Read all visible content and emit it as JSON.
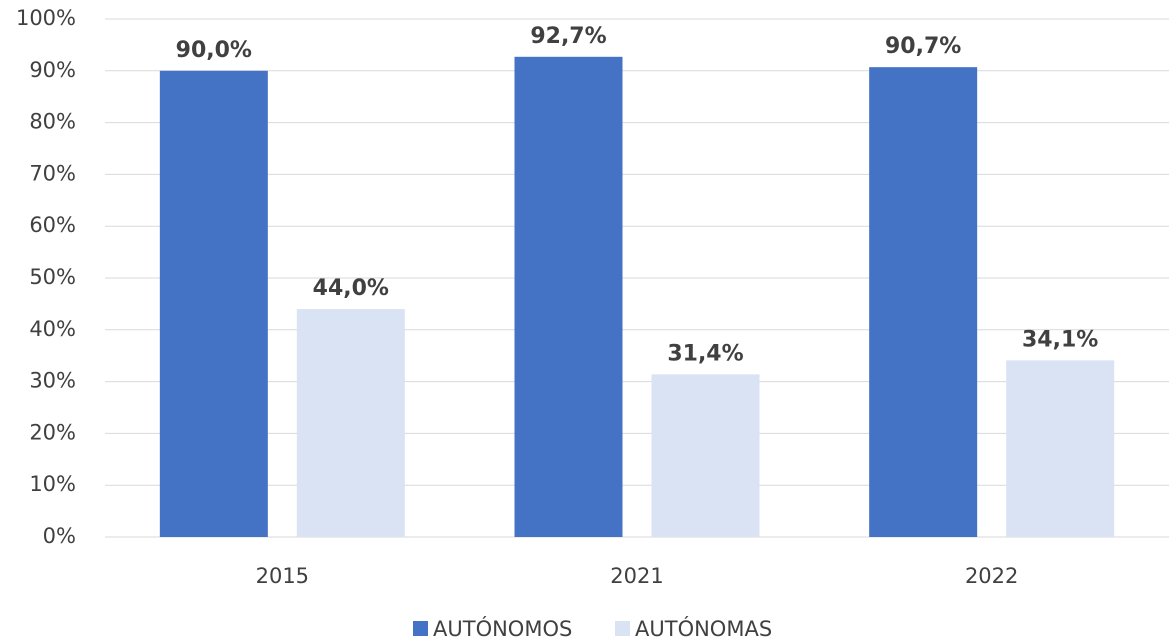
{
  "chart_data": {
    "type": "bar",
    "categories": [
      "2015",
      "2021",
      "2022"
    ],
    "series": [
      {
        "name": "AUTÓNOMOS",
        "color": "#4472c4",
        "values": [
          90.0,
          92.7,
          90.7
        ],
        "value_labels": [
          "90,0%",
          "92,7%",
          "90,7%"
        ]
      },
      {
        "name": "AUTÓNOMAS",
        "color": "#dae3f3",
        "values": [
          44.0,
          31.4,
          34.1
        ],
        "value_labels": [
          "44,0%",
          "31,4%",
          "34,1%"
        ]
      }
    ],
    "ylim": [
      0,
      100
    ],
    "yticks": [
      {
        "value": 0,
        "label": "0%"
      },
      {
        "value": 10,
        "label": "10%"
      },
      {
        "value": 20,
        "label": "20%"
      },
      {
        "value": 30,
        "label": "30%"
      },
      {
        "value": 40,
        "label": "40%"
      },
      {
        "value": 50,
        "label": "50%"
      },
      {
        "value": 60,
        "label": "60%"
      },
      {
        "value": 70,
        "label": "70%"
      },
      {
        "value": 80,
        "label": "80%"
      },
      {
        "value": 90,
        "label": "90%"
      },
      {
        "value": 100,
        "label": "100%"
      }
    ],
    "grid": true,
    "legend": "bottom"
  }
}
